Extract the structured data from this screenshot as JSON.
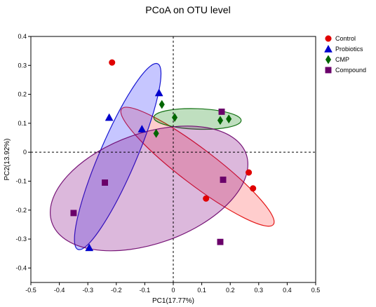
{
  "chart_data": {
    "type": "scatter",
    "title": "PCoA on OTU level",
    "xlabel": "PC1(17.77%)",
    "ylabel": "PC2(13.92%)",
    "xlim": [
      -0.5,
      0.5
    ],
    "ylim": [
      -0.45,
      0.4
    ],
    "xticks": [
      "-0.5",
      "-0.4",
      "-0.3",
      "-0.2",
      "-0.1",
      "0",
      "0.1",
      "0.2",
      "0.3",
      "0.4",
      "0.5"
    ],
    "yticks": [
      "0.4",
      "0.3",
      "0.2",
      "0.1",
      "0",
      "-0.1",
      "-0.2",
      "-0.3",
      "-0.4"
    ],
    "legend_position": "top-right",
    "reference_lines": {
      "x": 0,
      "y": 0,
      "style": "dashed"
    },
    "series": [
      {
        "name": "Control",
        "marker": "circle",
        "color": "#e00000",
        "fill": "#ff4d4d",
        "points": [
          [
            -0.215,
            0.31
          ],
          [
            0.265,
            -0.07
          ],
          [
            0.28,
            -0.125
          ],
          [
            0.115,
            -0.16
          ]
        ],
        "ellipse": {
          "center": [
            0.085,
            -0.05
          ],
          "semi_major": 0.333,
          "semi_minor": 0.062,
          "angle_deg": -36.8
        }
      },
      {
        "name": "Probiotics",
        "marker": "triangle",
        "color": "#0000cc",
        "fill": "#3333ff",
        "points": [
          [
            -0.05,
            0.205
          ],
          [
            -0.225,
            0.12
          ],
          [
            -0.11,
            0.08
          ],
          [
            -0.295,
            -0.33
          ]
        ],
        "ellipse": {
          "center": [
            -0.195,
            -0.015
          ],
          "semi_major": 0.35,
          "semi_minor": 0.064,
          "angle_deg": 66.4
        }
      },
      {
        "name": "CMP",
        "marker": "diamond",
        "color": "#006600",
        "fill": "#1a8c1a",
        "points": [
          [
            -0.04,
            0.165
          ],
          [
            0.005,
            0.12
          ],
          [
            0.165,
            0.11
          ],
          [
            0.195,
            0.115
          ],
          [
            -0.06,
            0.065
          ]
        ],
        "ellipse": {
          "center": [
            0.085,
            0.115
          ],
          "semi_major": 0.1535,
          "semi_minor": 0.0355,
          "angle_deg": -2
        }
      },
      {
        "name": "Compound",
        "marker": "square",
        "color": "#6a006a",
        "fill": "#800080",
        "points": [
          [
            0.17,
            0.14
          ],
          [
            0.175,
            -0.095
          ],
          [
            -0.24,
            -0.105
          ],
          [
            -0.35,
            -0.21
          ],
          [
            0.165,
            -0.31
          ]
        ],
        "ellipse": {
          "center": [
            -0.085,
            -0.125
          ],
          "semi_major": 0.361,
          "semi_minor": 0.191,
          "angle_deg": 19
        }
      }
    ]
  }
}
